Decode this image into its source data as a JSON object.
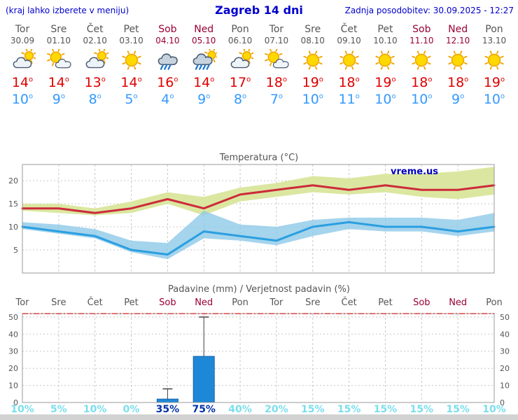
{
  "header": {
    "menu_hint": "(kraj lahko izberete v meniju)",
    "title": "Zagreb 14 dni",
    "last_update": "Zadnja posodobitev: 30.09.2025 - 12:27"
  },
  "colors": {
    "header_blue": "#0000cc",
    "weekday_text": "#555555",
    "weekend_text": "#990033",
    "tmax_text": "#e00000",
    "tmin_text": "#3399ff",
    "tmax_line": "#cc2b3b",
    "tmax_band": "#dbe7a0",
    "tmin_line": "#2b9fe0",
    "tmin_band": "#8cc8e8",
    "bar_fill": "#1e88d8",
    "bar_edge": "#1560a8",
    "prob_normal": "#7adeee",
    "prob_high": "#0033aa",
    "grid": "#c8c8c8",
    "frame": "#999999",
    "red_dash_line": "#dd4444"
  },
  "days": [
    {
      "name": "Tor",
      "date": "30.09",
      "weekend": false,
      "icon": "cloud-sun",
      "tmax": 14,
      "tmin": 10,
      "prob": "10%",
      "prob_high": false
    },
    {
      "name": "Sre",
      "date": "01.10",
      "weekend": false,
      "icon": "sun-cloud",
      "tmax": 14,
      "tmin": 9,
      "prob": "5%",
      "prob_high": false
    },
    {
      "name": "Čet",
      "date": "02.10",
      "weekend": false,
      "icon": "cloud-sun",
      "tmax": 13,
      "tmin": 8,
      "prob": "10%",
      "prob_high": false
    },
    {
      "name": "Pet",
      "date": "03.10",
      "weekend": false,
      "icon": "sun",
      "tmax": 14,
      "tmin": 5,
      "prob": "0%",
      "prob_high": false
    },
    {
      "name": "Sob",
      "date": "04.10",
      "weekend": true,
      "icon": "rain",
      "tmax": 16,
      "tmin": 4,
      "prob": "35%",
      "prob_high": true
    },
    {
      "name": "Ned",
      "date": "05.10",
      "weekend": true,
      "icon": "rain-sun",
      "tmax": 14,
      "tmin": 9,
      "prob": "75%",
      "prob_high": true
    },
    {
      "name": "Pon",
      "date": "06.10",
      "weekend": false,
      "icon": "cloud-sun",
      "tmax": 17,
      "tmin": 8,
      "prob": "40%",
      "prob_high": false
    },
    {
      "name": "Tor",
      "date": "07.10",
      "weekend": false,
      "icon": "sun-cloud",
      "tmax": 18,
      "tmin": 7,
      "prob": "20%",
      "prob_high": false
    },
    {
      "name": "Sre",
      "date": "08.10",
      "weekend": false,
      "icon": "sun",
      "tmax": 19,
      "tmin": 10,
      "prob": "15%",
      "prob_high": false
    },
    {
      "name": "Čet",
      "date": "09.10",
      "weekend": false,
      "icon": "sun",
      "tmax": 18,
      "tmin": 11,
      "prob": "15%",
      "prob_high": false
    },
    {
      "name": "Pet",
      "date": "10.10",
      "weekend": false,
      "icon": "sun",
      "tmax": 19,
      "tmin": 10,
      "prob": "15%",
      "prob_high": false
    },
    {
      "name": "Sob",
      "date": "11.10",
      "weekend": true,
      "icon": "sun",
      "tmax": 18,
      "tmin": 10,
      "prob": "15%",
      "prob_high": false
    },
    {
      "name": "Ned",
      "date": "12.10",
      "weekend": true,
      "icon": "sun",
      "tmax": 18,
      "tmin": 9,
      "prob": "15%",
      "prob_high": false
    },
    {
      "name": "Pon",
      "date": "13.10",
      "weekend": false,
      "icon": "sun",
      "tmax": 19,
      "tmin": 10,
      "prob": "10%",
      "prob_high": false
    }
  ],
  "chart_data": [
    {
      "type": "line",
      "title": "Temperatura (°C)",
      "watermark": "vreme.us",
      "x": [
        "Tor",
        "Sre",
        "Čet",
        "Pet",
        "Sob",
        "Ned",
        "Pon",
        "Tor",
        "Sre",
        "Čet",
        "Pet",
        "Sob",
        "Ned",
        "Pon"
      ],
      "ylim": [
        0,
        23.5
      ],
      "yticks": [
        5,
        10,
        15,
        20
      ],
      "grid": true,
      "series": [
        {
          "name": "max-temperature",
          "values": [
            14,
            14,
            13,
            14,
            16,
            14,
            17,
            18,
            19,
            18,
            19,
            18,
            18,
            19
          ]
        },
        {
          "name": "min-temperature",
          "values": [
            10,
            9,
            8,
            5,
            4,
            9,
            8,
            7,
            10,
            11,
            10,
            10,
            9,
            10
          ]
        }
      ],
      "bands": [
        {
          "name": "max-temperature-range",
          "upper": [
            15,
            15,
            14,
            15.5,
            17.5,
            16.5,
            18.5,
            19.5,
            21,
            20.5,
            21.5,
            21.5,
            22,
            23
          ],
          "lower": [
            13.5,
            13,
            12.5,
            13,
            15,
            12.5,
            15.5,
            16.5,
            17.5,
            17,
            17.5,
            16.5,
            16,
            17
          ]
        },
        {
          "name": "min-temperature-range",
          "upper": [
            11,
            10.5,
            9.5,
            7,
            6.5,
            13.5,
            10.5,
            10,
            11.5,
            12,
            12,
            12,
            11.5,
            13
          ],
          "lower": [
            9.5,
            8.5,
            7.5,
            4.5,
            3,
            7.5,
            7,
            6,
            8,
            9.5,
            9,
            9,
            8,
            9
          ]
        }
      ]
    },
    {
      "type": "bar",
      "title": "Padavine (mm) / Verjetnost padavin (%)",
      "categories": [
        "Tor",
        "Sre",
        "Čet",
        "Pet",
        "Sob",
        "Ned",
        "Pon",
        "Tor",
        "Sre",
        "Čet",
        "Pet",
        "Sob",
        "Ned",
        "Pon"
      ],
      "values": [
        0,
        0,
        0,
        0,
        2,
        27,
        0,
        0,
        0,
        0,
        0,
        0,
        0,
        0
      ],
      "whiskers": [
        0,
        0,
        0,
        0,
        8,
        50,
        0,
        0,
        0,
        0,
        0,
        0,
        0,
        0
      ],
      "ylim": [
        0,
        52
      ],
      "yticks": [
        0,
        10,
        20,
        30,
        40,
        50
      ],
      "prob_labels": [
        "10%",
        "5%",
        "10%",
        "0%",
        "35%",
        "75%",
        "40%",
        "20%",
        "15%",
        "15%",
        "15%",
        "15%",
        "15%",
        "10%"
      ]
    }
  ]
}
